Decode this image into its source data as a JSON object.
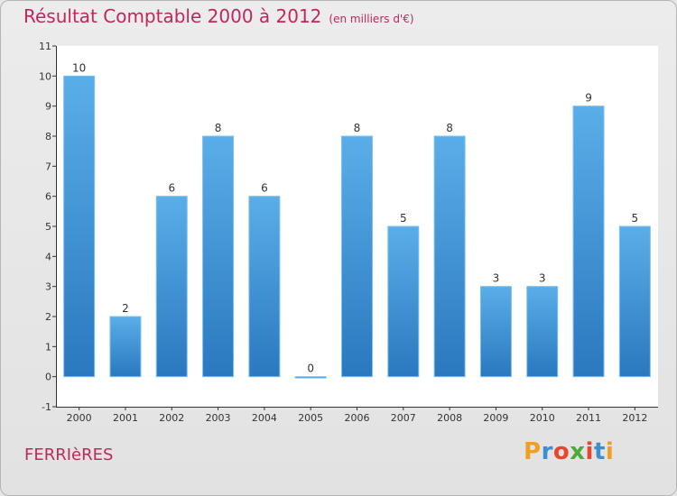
{
  "title": "Résultat Comptable 2000 à 2012",
  "subtitle": "(en milliers d'€)",
  "place": "FERRIèRES",
  "logo": {
    "letters": [
      "P",
      "r",
      "o",
      "x",
      "i",
      "t",
      "i"
    ],
    "colors": [
      "#f0a020",
      "#3a8fd0",
      "#e8452f",
      "#4caa3c",
      "#e8452f",
      "#3a8fd0",
      "#f0a020"
    ]
  },
  "colors": {
    "title": "#c0275a",
    "bar_top": "#5aaee8",
    "bar_bottom": "#2a78bf"
  },
  "chart_data": {
    "type": "bar",
    "title": "Résultat Comptable 2000 à 2012",
    "subtitle": "(en milliers d'€)",
    "xlabel": "",
    "ylabel": "",
    "categories": [
      "2000",
      "2001",
      "2002",
      "2003",
      "2004",
      "2005",
      "2006",
      "2007",
      "2008",
      "2009",
      "2010",
      "2011",
      "2012"
    ],
    "values": [
      10,
      2,
      6,
      8,
      6,
      0,
      8,
      5,
      8,
      3,
      3,
      9,
      5
    ],
    "ylim": [
      -1,
      11
    ],
    "yticks": [
      "-1",
      "0",
      "1",
      "2",
      "3",
      "4",
      "5",
      "6",
      "7",
      "8",
      "9",
      "10",
      "11"
    ],
    "grid": false,
    "legend": "none"
  }
}
